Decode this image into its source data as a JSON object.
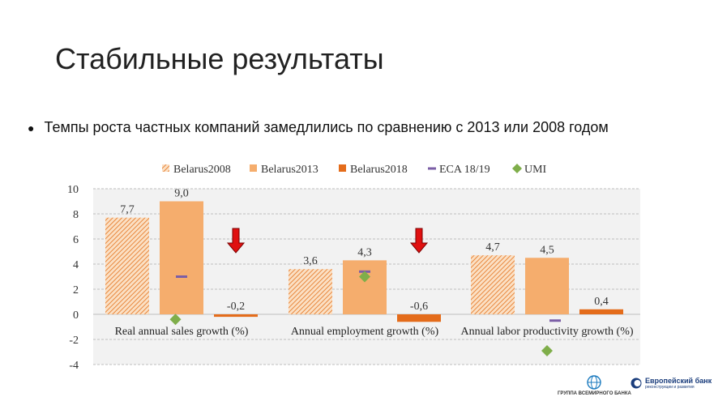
{
  "slide": {
    "title": "Стабильные результаты",
    "bullet": "Темпы роста частных компаний замедлились по сравнению с 2013 или 2008 годом"
  },
  "logos": {
    "worldbank_text": "ГРУППА ВСЕМИРНОГО БАНКА",
    "ebrd_line1": "Европейский банк",
    "ebrd_line2": "реконструкции и развития"
  },
  "chart_data": {
    "type": "bar",
    "categories": [
      "Real annual sales growth (%)",
      "Annual employment growth (%)",
      "Annual labor productivity growth (%)"
    ],
    "series": [
      {
        "name": "Belarus2008",
        "kind": "bar",
        "pattern": "hatched",
        "color": "#ef9a58",
        "values": [
          7.7,
          3.6,
          4.7
        ],
        "labels": [
          "7,7",
          "3,6",
          "4,7"
        ]
      },
      {
        "name": "Belarus2013",
        "kind": "bar",
        "pattern": "solid",
        "color": "#f5ad6d",
        "values": [
          9.0,
          4.3,
          4.5
        ],
        "labels": [
          "9,0",
          "4,3",
          "4,5"
        ]
      },
      {
        "name": "Belarus2018",
        "kind": "bar",
        "pattern": "solid",
        "color": "#e46c1b",
        "values": [
          -0.2,
          -0.6,
          0.4
        ],
        "labels": [
          "-0,2",
          "-0,6",
          "0,4"
        ]
      },
      {
        "name": "ECA 18/19",
        "kind": "marker-dash",
        "color": "#7b5ea6",
        "values": [
          3.0,
          3.4,
          -0.5
        ]
      },
      {
        "name": "UMI",
        "kind": "marker-diamond",
        "color": "#7fae4a",
        "values": [
          -0.4,
          3.0,
          -2.9
        ]
      }
    ],
    "ylim": [
      -4,
      10
    ],
    "yticks": [
      "10",
      "8",
      "6",
      "4",
      "2",
      "0",
      "-2",
      "-4"
    ],
    "ytick_values": [
      10,
      8,
      6,
      4,
      2,
      0,
      -2,
      -4
    ],
    "grid": true,
    "legend_position": "top",
    "annotations": [
      {
        "type": "arrow-down",
        "color": "#e01010",
        "category": 0
      },
      {
        "type": "arrow-down",
        "color": "#e01010",
        "category": 1
      }
    ]
  }
}
